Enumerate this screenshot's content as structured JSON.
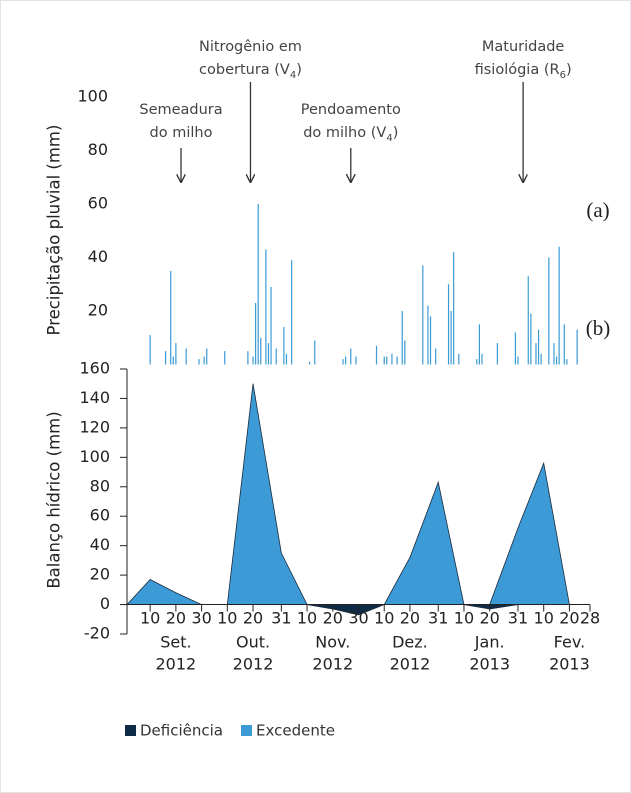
{
  "chart_data": [
    {
      "type": "bar",
      "y_label": "Precipitação pluvial (mm)",
      "panel_label": "(a)",
      "color": "#3a9bd5",
      "xlim": [
        1,
        181
      ],
      "ylim": [
        0,
        100
      ],
      "yticks": [
        20,
        40,
        60,
        80,
        100
      ],
      "x": [
        10,
        16,
        18,
        19,
        20,
        24,
        29,
        31,
        32,
        39,
        48,
        50,
        51,
        52,
        53,
        55,
        56,
        57,
        59,
        62,
        63,
        65,
        72,
        74,
        85,
        86,
        88,
        90,
        98,
        101,
        102,
        104,
        106,
        108,
        109,
        116,
        118,
        119,
        121,
        126,
        127,
        128,
        130,
        137,
        138,
        139,
        145,
        152,
        153,
        157,
        158,
        160,
        161,
        162,
        165,
        167,
        168,
        169,
        171,
        172,
        176
      ],
      "values": [
        11,
        5,
        35,
        3,
        8,
        6,
        2,
        3,
        6,
        5,
        5,
        3,
        23,
        60,
        10,
        43,
        8,
        29,
        6,
        14,
        4,
        39,
        1,
        9,
        2,
        3,
        6,
        3,
        7,
        3,
        3,
        4,
        3,
        20,
        9,
        37,
        22,
        18,
        6,
        30,
        20,
        42,
        4,
        2,
        15,
        4,
        8,
        12,
        3,
        33,
        19,
        8,
        13,
        4,
        40,
        8,
        3,
        44,
        15,
        2,
        13
      ],
      "annotations": [
        {
          "x": 22,
          "lines": [
            [
              "Semeadura"
            ],
            [
              "do milho"
            ]
          ]
        },
        {
          "x": 49,
          "lines": [
            [
              "Nitrogênio em"
            ],
            [
              "cobertura (V",
              "4",
              ")"
            ]
          ]
        },
        {
          "x": 88,
          "lines": [
            [
              "Pendoamento"
            ],
            [
              "do milho (V",
              "4",
              ")"
            ]
          ]
        },
        {
          "x": 155,
          "lines": [
            [
              "Maturidade"
            ],
            [
              "fisiológia (R",
              "6",
              ")"
            ]
          ]
        }
      ]
    },
    {
      "type": "area",
      "y_label": "Balanço hídrico (mm)",
      "panel_label": "(b)",
      "xlim": [
        1,
        181
      ],
      "ylim": [
        -20,
        160
      ],
      "yticks": [
        -20,
        0,
        20,
        40,
        60,
        80,
        100,
        120,
        140,
        160
      ],
      "xticks": [
        {
          "value": 10,
          "label": "10"
        },
        {
          "value": 20,
          "label": "20"
        },
        {
          "value": 30,
          "label": "30"
        },
        {
          "value": 40,
          "label": "10"
        },
        {
          "value": 50,
          "label": "20"
        },
        {
          "value": 61,
          "label": "31"
        },
        {
          "value": 71,
          "label": "10"
        },
        {
          "value": 81,
          "label": "20"
        },
        {
          "value": 91,
          "label": "30"
        },
        {
          "value": 101,
          "label": "10"
        },
        {
          "value": 111,
          "label": "20"
        },
        {
          "value": 122,
          "label": "31"
        },
        {
          "value": 132,
          "label": "10"
        },
        {
          "value": 142,
          "label": "20"
        },
        {
          "value": 153,
          "label": "31"
        },
        {
          "value": 163,
          "label": "10"
        },
        {
          "value": 173,
          "label": "20"
        },
        {
          "value": 181,
          "label": "28"
        }
      ],
      "months": [
        [
          "Set.",
          "2012"
        ],
        [
          "Out.",
          "2012"
        ],
        [
          "Nov.",
          "2012"
        ],
        [
          "Dez.",
          "2012"
        ],
        [
          "Jan.",
          "2013"
        ],
        [
          "Fev.",
          "2013"
        ]
      ],
      "x": [
        1,
        10,
        20,
        30,
        40,
        50,
        61,
        71,
        81,
        91,
        101,
        111,
        122,
        132,
        142,
        153,
        163,
        173
      ],
      "series": [
        {
          "name": "Deficiência",
          "color": "#0f2a47",
          "values": [
            0,
            0,
            0,
            0,
            0,
            0,
            0,
            0,
            -3,
            -7,
            0,
            0,
            0,
            0,
            -3,
            0,
            0,
            0
          ]
        },
        {
          "name": "Excedente",
          "color": "#3c9ad6",
          "values": [
            0,
            17,
            8,
            0,
            0,
            150,
            35,
            0,
            0,
            0,
            0,
            32,
            83,
            0,
            0,
            52,
            96,
            0
          ]
        }
      ],
      "legend": "bottom"
    }
  ]
}
